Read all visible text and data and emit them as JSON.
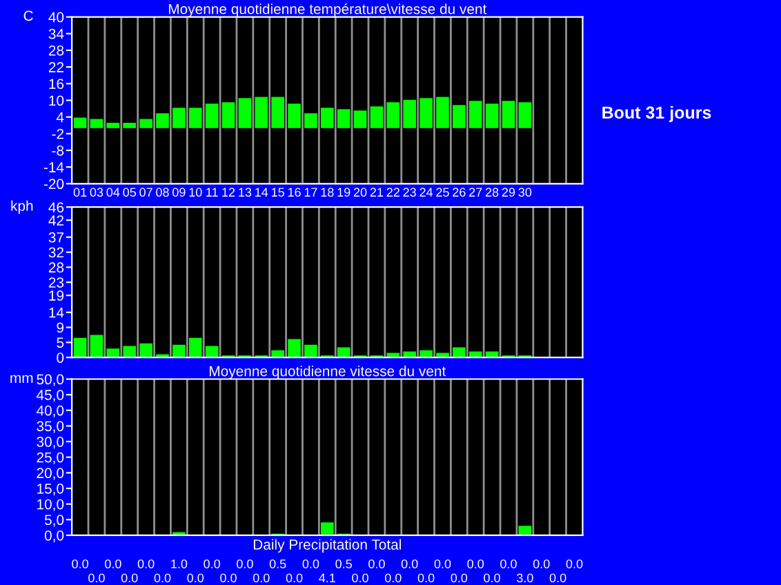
{
  "chart_data": [
    {
      "type": "bar",
      "title": "Moyenne quotidienne température\\vitesse du vent",
      "ylabel": "C",
      "categories": [
        "01",
        "03",
        "04",
        "05",
        "07",
        "08",
        "09",
        "10",
        "11",
        "12",
        "13",
        "14",
        "15",
        "16",
        "17",
        "18",
        "19",
        "20",
        "21",
        "22",
        "23",
        "24",
        "25",
        "26",
        "27",
        "28",
        "29",
        "30",
        null,
        null,
        null
      ],
      "series": [
        {
          "color": "#00ff00",
          "values": [
            3.8,
            3.3,
            1.9,
            1.9,
            3.3,
            5.3,
            7.3,
            7.3,
            8.8,
            9.3,
            10.8,
            11.2,
            11.2,
            8.8,
            5.3,
            7.3,
            6.8,
            6.3,
            7.8,
            9.3,
            10.2,
            10.8,
            11.2,
            8.3,
            9.8,
            8.8,
            9.8,
            9.3,
            null,
            null,
            null
          ]
        }
      ],
      "ylim": [
        -20,
        40
      ],
      "yticks": [
        -20,
        -14,
        -8,
        -2,
        4,
        10,
        16,
        22,
        28,
        34,
        40
      ],
      "grid": "x",
      "annotations": [
        "Bout 31 jours"
      ]
    },
    {
      "type": "bar",
      "ylabel": "kph",
      "categories": [
        "01",
        "03",
        "04",
        "05",
        "07",
        "08",
        "09",
        "10",
        "11",
        "12",
        "13",
        "14",
        "15",
        "16",
        "17",
        "18",
        "19",
        "20",
        "21",
        "22",
        "23",
        "24",
        "25",
        "26",
        "27",
        "28",
        "29",
        "30",
        null,
        null,
        null
      ],
      "series": [
        {
          "color": "#00ff00",
          "values": [
            6.0,
            6.9,
            2.7,
            3.5,
            4.3,
            1.0,
            3.9,
            6.0,
            3.5,
            0.6,
            0.6,
            0.6,
            2.2,
            5.6,
            3.9,
            0.6,
            3.1,
            0.6,
            0.6,
            1.4,
            1.8,
            2.2,
            1.4,
            3.1,
            1.8,
            1.8,
            0.6,
            0.6,
            null,
            null,
            null
          ]
        }
      ],
      "ylim": [
        0,
        46
      ],
      "yticks": [
        0,
        {
          "value": 4.6,
          "label": "5"
        },
        {
          "value": 9.2,
          "label": "9"
        },
        {
          "value": 13.8,
          "label": "14"
        },
        19,
        23,
        {
          "value": 27.6,
          "label": "28"
        },
        {
          "value": 32.2,
          "label": "32"
        },
        {
          "value": 36.8,
          "label": "37"
        },
        42,
        46
      ],
      "grid": "x",
      "tick_labels": "y"
    },
    {
      "type": "bar",
      "title": "Moyenne quotidienne vitesse du vent",
      "ylabel": "mm",
      "xlabel": "Daily Precipitation Total",
      "categories": [
        null,
        null,
        null,
        null,
        null,
        null,
        null,
        null,
        null,
        null,
        null,
        null,
        null,
        null,
        null,
        null,
        null,
        null,
        null,
        null,
        null,
        null,
        null,
        null,
        null,
        null,
        null,
        null,
        null,
        null,
        null
      ],
      "series": [
        {
          "color": "#00ff00",
          "values": [
            0,
            0,
            0,
            0,
            0,
            0,
            1.0,
            0,
            0,
            0,
            0,
            0,
            0.5,
            0,
            0,
            4.1,
            0.5,
            0,
            0,
            0,
            0,
            0,
            0,
            0,
            0,
            0,
            0,
            3.0,
            0,
            0,
            0
          ],
          "value_labels": [
            "0.0",
            "0.0",
            "0.0",
            "0.0",
            "0.0",
            "0.0",
            "1.0",
            "0.0",
            "0.0",
            "0.0",
            "0.0",
            "0.0",
            "0.5",
            "0.0",
            "0.0",
            "4.1",
            "0.5",
            "0.0",
            "0.0",
            "0.0",
            "0.0",
            "0.0",
            "0.0",
            "0.0",
            "0.0",
            "0.0",
            "0.0",
            "3.0",
            "0.0",
            "0.0",
            "0.0"
          ]
        }
      ],
      "ylim": [
        0,
        50
      ],
      "yticks": [
        {
          "value": 0,
          "label": "0,0"
        },
        {
          "value": 5,
          "label": "5,0"
        },
        {
          "value": 10,
          "label": "10,0"
        },
        {
          "value": 15,
          "label": "15,0"
        },
        {
          "value": 20,
          "label": "20,0"
        },
        {
          "value": 25,
          "label": "25,0"
        },
        {
          "value": 30,
          "label": "30,0"
        },
        {
          "value": 35,
          "label": "35,0"
        },
        {
          "value": 40,
          "label": "40,0"
        },
        {
          "value": 45,
          "label": "45,0"
        },
        {
          "value": 50,
          "label": "50,0"
        }
      ],
      "grid": "x",
      "tick_labels": "y"
    }
  ]
}
